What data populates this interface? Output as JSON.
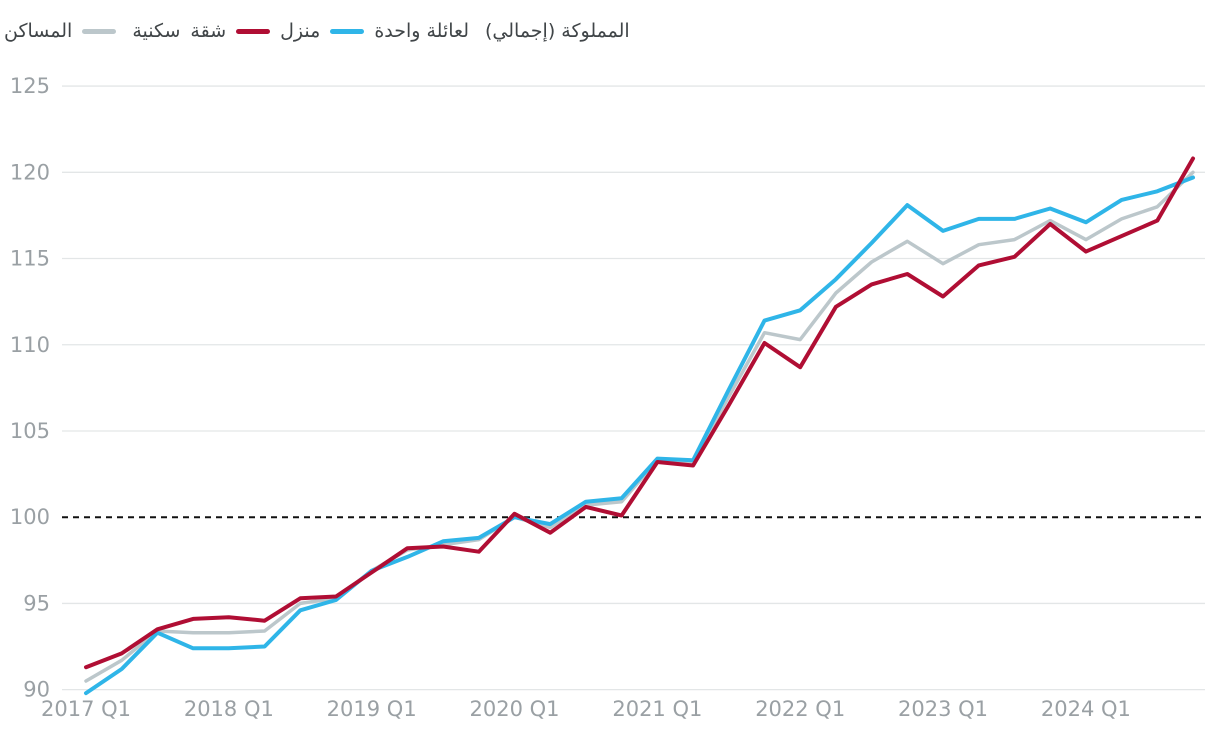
{
  "legend": {
    "series_semantic": [
      {
        "label": "منزل لعائلة واحدة",
        "color": "#2fb5e8"
      },
      {
        "label": "شقة",
        "color": "#b00e34"
      },
      {
        "label": "المساكن السكنية المملوكة (إجمالي)",
        "color": "#bcc7cb"
      }
    ],
    "display": {
      "w1": "المساكن",
      "w2": "سكنية",
      "w3": "شقة",
      "w4": "منزل",
      "w5": "لعائلة واحدة",
      "w6": "المملوكة (إجمالي)"
    },
    "swatch_colors": {
      "total": "#bcc7cb",
      "apartment": "#b00e34",
      "house": "#2fb5e8"
    }
  },
  "chart_data": {
    "type": "line",
    "x_quarters": [
      "2017 Q1",
      "2017 Q2",
      "2017 Q3",
      "2017 Q4",
      "2018 Q1",
      "2018 Q2",
      "2018 Q3",
      "2018 Q4",
      "2019 Q1",
      "2019 Q2",
      "2019 Q3",
      "2019 Q4",
      "2020 Q1",
      "2020 Q2",
      "2020 Q3",
      "2020 Q4",
      "2021 Q1",
      "2021 Q2",
      "2021 Q3",
      "2021 Q4",
      "2022 Q1",
      "2022 Q2",
      "2022 Q3",
      "2022 Q4",
      "2023 Q1",
      "2023 Q2",
      "2023 Q3",
      "2023 Q4",
      "2024 Q1",
      "2024 Q2",
      "2024 Q3",
      "2024 Q4"
    ],
    "x_tick_labels": [
      "2017 Q1",
      "2018 Q1",
      "2019 Q1",
      "2020 Q1",
      "2021 Q1",
      "2022 Q1",
      "2023 Q1",
      "2024 Q1"
    ],
    "y_ticks": [
      90,
      95,
      100,
      105,
      110,
      115,
      120,
      125
    ],
    "baseline_value": 100,
    "ylim": [
      88.3,
      125.2
    ],
    "grid": "horizontal-only",
    "legend_position": "top-left",
    "series": [
      {
        "name": "المساكن السكنية المملوكة (إجمالي)",
        "key": "total",
        "color": "#bcc7cb",
        "width": 3.5,
        "values": [
          90.5,
          91.7,
          93.4,
          93.3,
          93.3,
          93.4,
          95.0,
          95.3,
          96.9,
          98.1,
          98.4,
          98.7,
          100.0,
          99.4,
          100.7,
          100.9,
          103.3,
          103.2,
          107.0,
          110.7,
          110.3,
          113.0,
          114.8,
          116.0,
          114.7,
          115.8,
          116.1,
          117.2,
          116.1,
          117.3,
          118.0,
          120.0
        ]
      },
      {
        "name": "منزل لعائلة واحدة",
        "key": "house",
        "color": "#2fb5e8",
        "width": 4,
        "values": [
          89.8,
          91.2,
          93.3,
          92.4,
          92.4,
          92.5,
          94.6,
          95.2,
          96.9,
          97.7,
          98.6,
          98.8,
          100.0,
          99.6,
          100.9,
          101.1,
          103.4,
          103.3,
          107.4,
          111.4,
          112.0,
          113.8,
          115.9,
          118.1,
          116.6,
          117.3,
          117.3,
          117.9,
          117.1,
          118.4,
          118.9,
          119.7
        ]
      },
      {
        "name": "شقة",
        "key": "apartment",
        "color": "#b00e34",
        "width": 4,
        "values": [
          91.3,
          92.1,
          93.5,
          94.1,
          94.2,
          94.0,
          95.3,
          95.4,
          96.8,
          98.2,
          98.3,
          98.0,
          100.2,
          99.1,
          100.6,
          100.1,
          103.2,
          103.0,
          106.5,
          110.1,
          108.7,
          112.2,
          113.5,
          114.1,
          112.8,
          114.6,
          115.1,
          117.0,
          115.4,
          116.3,
          117.2,
          120.8
        ]
      }
    ],
    "colors": {
      "grid": "#e3e6e7",
      "baseline": "#111111",
      "tick_label": "#9aa0a4"
    }
  }
}
